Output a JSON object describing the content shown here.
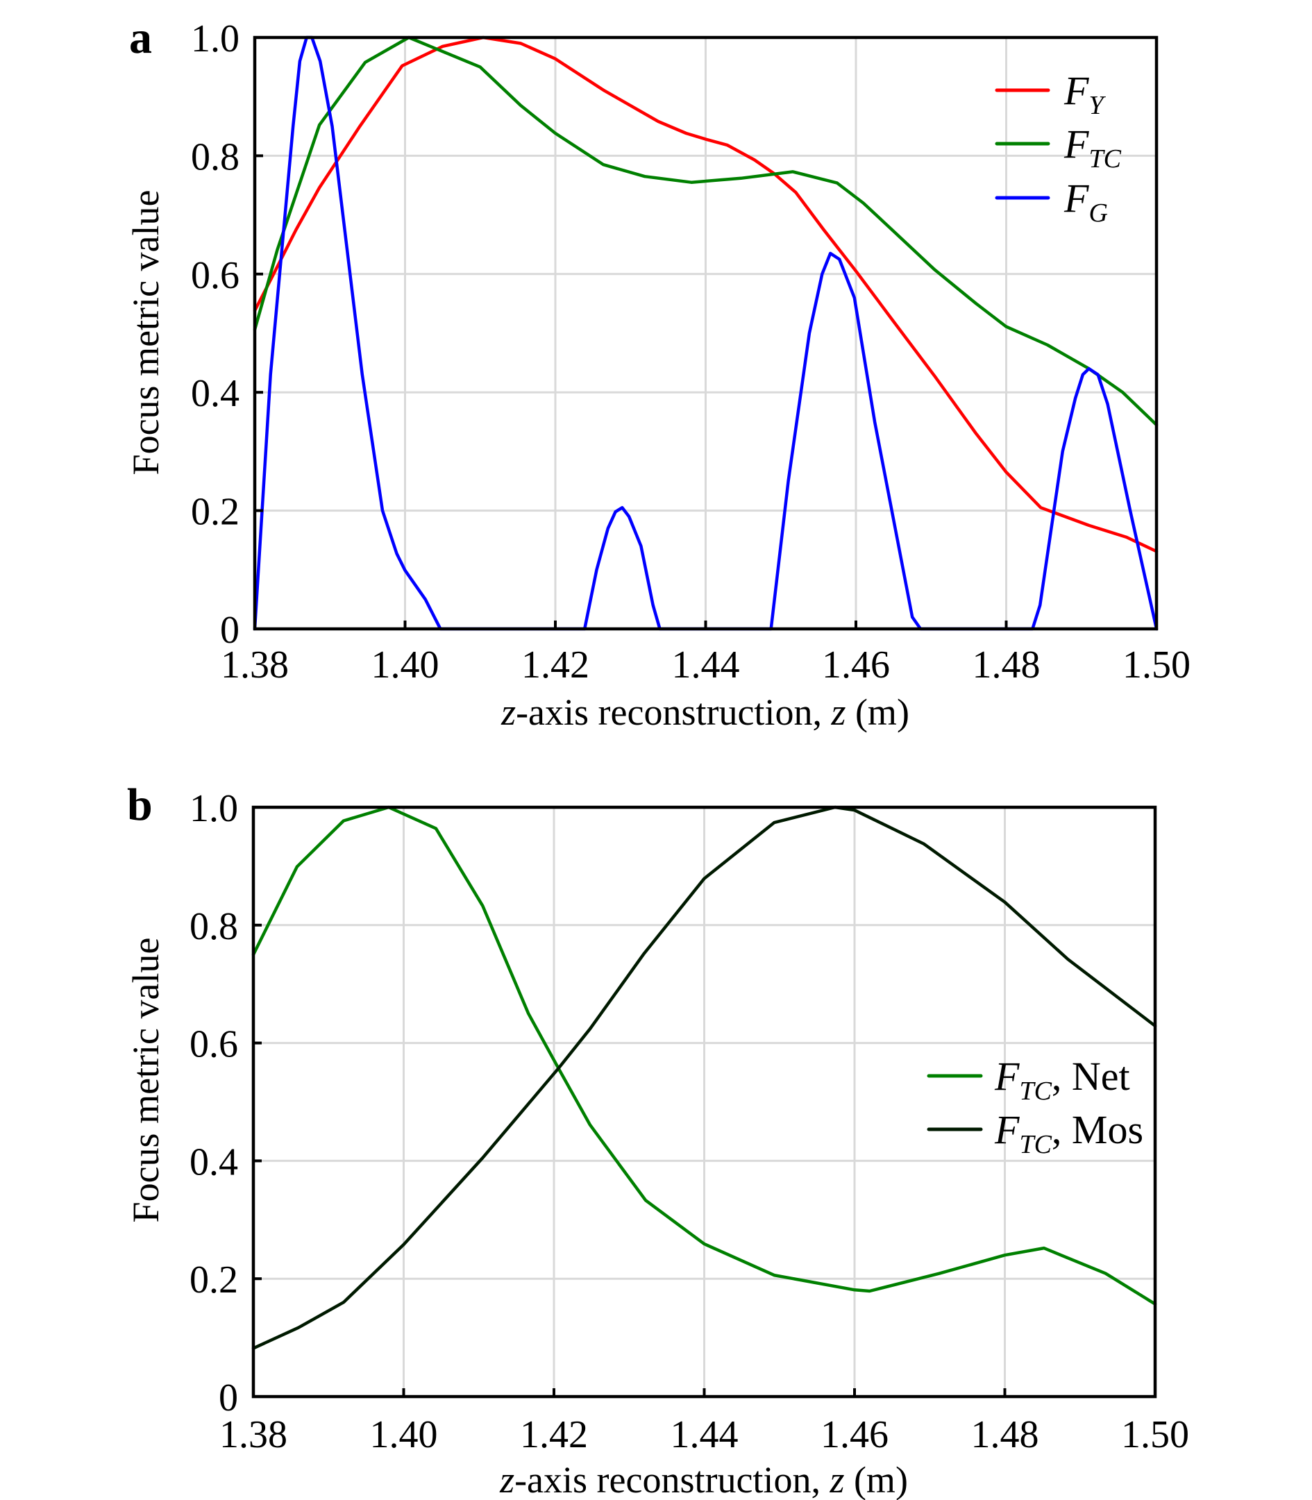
{
  "chart_data": [
    {
      "type": "line",
      "panel_label": "a",
      "xlabel_italic": "z",
      "xlabel_mid": "-axis reconstruction, ",
      "xlabel_italic2": "z",
      "xlabel_tail": " (m)",
      "ylabel": "Focus metric value",
      "xlim": [
        1.38,
        1.5
      ],
      "ylim": [
        0,
        1.0
      ],
      "xticks": [
        "1.38",
        "1.40",
        "1.42",
        "1.44",
        "1.46",
        "1.48",
        "1.50"
      ],
      "yticks": [
        "0",
        "0.2",
        "0.4",
        "0.6",
        "0.8",
        "1.0"
      ],
      "grid": true,
      "legend_position": "top-right",
      "series": [
        {
          "name": "F_Y",
          "legend_main": "F",
          "legend_sub": "Y",
          "legend_suffix": "",
          "color": "#ff0000",
          "points": [
            [
              1.38,
              0.538
            ],
            [
              1.3825,
              0.6
            ],
            [
              1.3855,
              0.675
            ],
            [
              1.3886,
              0.746
            ],
            [
              1.394,
              0.85
            ],
            [
              1.3996,
              0.952
            ],
            [
              1.405,
              0.985
            ],
            [
              1.4104,
              1.0
            ],
            [
              1.4154,
              0.99
            ],
            [
              1.42,
              0.964
            ],
            [
              1.4264,
              0.911
            ],
            [
              1.4337,
              0.858
            ],
            [
              1.4374,
              0.838
            ],
            [
              1.44,
              0.828
            ],
            [
              1.4429,
              0.818
            ],
            [
              1.4465,
              0.793
            ],
            [
              1.4491,
              0.77
            ],
            [
              1.452,
              0.738
            ],
            [
              1.4557,
              0.675
            ],
            [
              1.46,
              0.605
            ],
            [
              1.465,
              0.52
            ],
            [
              1.4705,
              0.427
            ],
            [
              1.476,
              0.33
            ],
            [
              1.48,
              0.265
            ],
            [
              1.4846,
              0.205
            ],
            [
              1.491,
              0.175
            ],
            [
              1.496,
              0.155
            ],
            [
              1.5,
              0.131
            ]
          ]
        },
        {
          "name": "F_TC",
          "legend_main": "F",
          "legend_sub": "TC",
          "legend_suffix": "",
          "color": "#008000",
          "points": [
            [
              1.38,
              0.506
            ],
            [
              1.383,
              0.641
            ],
            [
              1.3886,
              0.852
            ],
            [
              1.3947,
              0.958
            ],
            [
              1.4005,
              1.0
            ],
            [
              1.41,
              0.95
            ],
            [
              1.4154,
              0.885
            ],
            [
              1.42,
              0.838
            ],
            [
              1.4264,
              0.785
            ],
            [
              1.4319,
              0.765
            ],
            [
              1.4381,
              0.755
            ],
            [
              1.4447,
              0.762
            ],
            [
              1.4516,
              0.773
            ],
            [
              1.4575,
              0.754
            ],
            [
              1.461,
              0.72
            ],
            [
              1.4647,
              0.676
            ],
            [
              1.4705,
              0.607
            ],
            [
              1.476,
              0.55
            ],
            [
              1.48,
              0.511
            ],
            [
              1.4855,
              0.48
            ],
            [
              1.491,
              0.44
            ],
            [
              1.4955,
              0.4
            ],
            [
              1.5,
              0.345
            ]
          ]
        },
        {
          "name": "F_G",
          "legend_main": "F",
          "legend_sub": "G",
          "legend_suffix": "",
          "color": "#0000ff",
          "points": [
            [
              1.38,
              0.0
            ],
            [
              1.3821,
              0.43
            ],
            [
              1.3851,
              0.85
            ],
            [
              1.386,
              0.96
            ],
            [
              1.3869,
              1.0
            ],
            [
              1.3876,
              1.0
            ],
            [
              1.3887,
              0.96
            ],
            [
              1.3903,
              0.85
            ],
            [
              1.3943,
              0.43
            ],
            [
              1.397,
              0.2
            ],
            [
              1.3989,
              0.127
            ],
            [
              1.4,
              0.099
            ],
            [
              1.4027,
              0.05
            ],
            [
              1.4047,
              0.0
            ],
            [
              1.4239,
              0.0
            ],
            [
              1.4255,
              0.1
            ],
            [
              1.427,
              0.17
            ],
            [
              1.428,
              0.198
            ],
            [
              1.4289,
              0.205
            ],
            [
              1.4298,
              0.19
            ],
            [
              1.4314,
              0.14
            ],
            [
              1.433,
              0.04
            ],
            [
              1.4339,
              0.0
            ],
            [
              1.4487,
              0.0
            ],
            [
              1.451,
              0.25
            ],
            [
              1.4538,
              0.5
            ],
            [
              1.4555,
              0.6
            ],
            [
              1.4566,
              0.635
            ],
            [
              1.4578,
              0.625
            ],
            [
              1.4598,
              0.56
            ],
            [
              1.4625,
              0.35
            ],
            [
              1.4675,
              0.02
            ],
            [
              1.4686,
              0.0
            ],
            [
              1.4835,
              0.0
            ],
            [
              1.4845,
              0.04
            ],
            [
              1.4875,
              0.3
            ],
            [
              1.4892,
              0.39
            ],
            [
              1.4902,
              0.43
            ],
            [
              1.491,
              0.44
            ],
            [
              1.4922,
              0.43
            ],
            [
              1.4935,
              0.38
            ],
            [
              1.4965,
              0.2
            ],
            [
              1.5,
              0.0
            ]
          ]
        }
      ]
    },
    {
      "type": "line",
      "panel_label": "b",
      "xlabel_italic": "z",
      "xlabel_mid": "-axis reconstruction, ",
      "xlabel_italic2": "z",
      "xlabel_tail": " (m)",
      "ylabel": "Focus metric value",
      "xlim": [
        1.38,
        1.5
      ],
      "ylim": [
        0,
        1.0
      ],
      "xticks": [
        "1.38",
        "1.40",
        "1.42",
        "1.44",
        "1.46",
        "1.48",
        "1.50"
      ],
      "yticks": [
        "0",
        "0.2",
        "0.4",
        "0.6",
        "0.8",
        "1.0"
      ],
      "grid": true,
      "legend_position": "center-right",
      "series": [
        {
          "name": "F_TC, Net",
          "legend_main": "F",
          "legend_sub": "TC",
          "legend_suffix": ", Net",
          "color": "#008000",
          "points": [
            [
              1.38,
              0.75
            ],
            [
              1.3858,
              0.899
            ],
            [
              1.392,
              0.977
            ],
            [
              1.398,
              1.0
            ],
            [
              1.4043,
              0.964
            ],
            [
              1.4105,
              0.833
            ],
            [
              1.4166,
              0.65
            ],
            [
              1.4206,
              0.557
            ],
            [
              1.4248,
              0.461
            ],
            [
              1.4322,
              0.333
            ],
            [
              1.44,
              0.259
            ],
            [
              1.4493,
              0.206
            ],
            [
              1.46,
              0.181
            ],
            [
              1.462,
              0.179
            ],
            [
              1.4713,
              0.209
            ],
            [
              1.48,
              0.24
            ],
            [
              1.4852,
              0.252
            ],
            [
              1.4934,
              0.209
            ],
            [
              1.5,
              0.157
            ]
          ]
        },
        {
          "name": "F_TC, Mos",
          "legend_main": "F",
          "legend_sub": "TC",
          "legend_suffix": ", Mos",
          "color": "#001a00",
          "points": [
            [
              1.38,
              0.082
            ],
            [
              1.386,
              0.117
            ],
            [
              1.392,
              0.16
            ],
            [
              1.4,
              0.258
            ],
            [
              1.4105,
              0.405
            ],
            [
              1.4206,
              0.557
            ],
            [
              1.4248,
              0.624
            ],
            [
              1.432,
              0.752
            ],
            [
              1.44,
              0.879
            ],
            [
              1.4493,
              0.974
            ],
            [
              1.4574,
              1.0
            ],
            [
              1.46,
              0.995
            ],
            [
              1.4692,
              0.938
            ],
            [
              1.48,
              0.839
            ],
            [
              1.4884,
              0.742
            ],
            [
              1.5,
              0.629
            ]
          ]
        }
      ]
    }
  ]
}
